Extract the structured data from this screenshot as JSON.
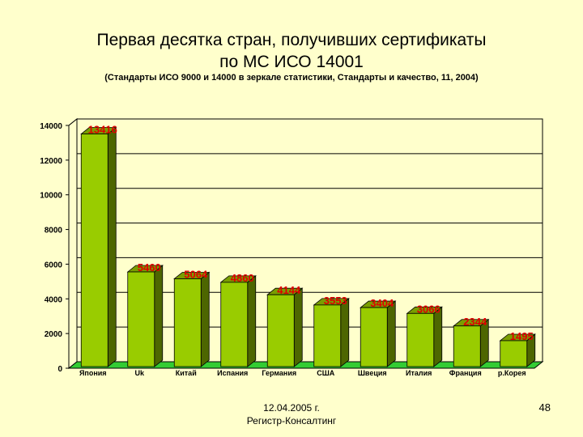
{
  "slide": {
    "title_line1": "Первая десятка стран, получивших сертификаты",
    "title_line2": "по МС ИСО 14001",
    "subtitle": "(Стандарты ИСО 9000 и 14000 в зеркале статистики, Стандарты и качество, 11, 2004)",
    "footer_date": "12.04.2005 г.",
    "footer_org": "Регистр-Консалтинг",
    "page_number": "48"
  },
  "chart_data": {
    "type": "bar",
    "title": "",
    "xlabel": "",
    "ylabel": "",
    "categories": [
      "Япония",
      "Uk",
      "Китай",
      "Испания",
      "Германия",
      "США",
      "Швеция",
      "Италия",
      "Франция",
      "р.Корея"
    ],
    "values": [
      13416,
      5460,
      5064,
      4860,
      4144,
      3553,
      3404,
      3066,
      2344,
      1495
    ],
    "ylim": [
      0,
      14000
    ],
    "yticks": [
      0,
      2000,
      4000,
      6000,
      8000,
      10000,
      12000,
      14000
    ],
    "grid": true,
    "legend": "none",
    "style": "3d",
    "colors": {
      "bar_front": "#99cc00",
      "bar_side": "#4d6600",
      "bar_top": "#7a9e00",
      "floor": "#33cc33",
      "data_label": "#e00000",
      "wall": "#ffffcc",
      "gridline": "#000000"
    }
  }
}
